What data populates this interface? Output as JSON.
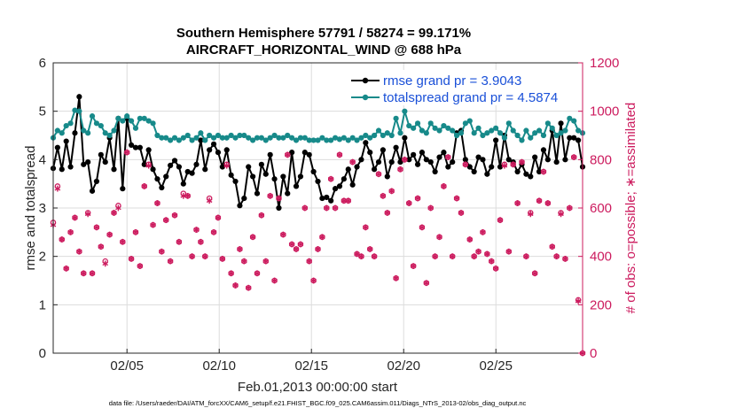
{
  "chart_data": {
    "type": "line",
    "title": "Southern Hemisphere 57791 / 58274 = 99.171%",
    "subtitle": "AIRCRAFT_HORIZONTAL_WIND @ 688 hPa",
    "xlabel": "Feb.01,2013 00:00:00 start",
    "ylabel": "rmse and totalspread",
    "ylabel_right": "# of obs: o=possible; ∗=assimilated",
    "xlim": [
      1,
      29.7
    ],
    "ylim": [
      0,
      6
    ],
    "ylim_right": [
      0,
      1200
    ],
    "x_ticks": [
      5,
      10,
      15,
      20,
      25
    ],
    "x_tick_labels": [
      "02/05",
      "02/10",
      "02/15",
      "02/20",
      "02/25"
    ],
    "y_ticks": [
      "0",
      "1",
      "2",
      "3",
      "4",
      "5",
      "6"
    ],
    "y_right_ticks": [
      "0",
      "200",
      "400",
      "600",
      "800",
      "1000",
      "1200"
    ],
    "grid": true,
    "legend_position": "top-right",
    "footnote": "data file: /Users/raeder/DAI/ATM_forcXX/CAM6_setup/f.e21.FHIST_BGC.f09_025.CAM6assim.011/Diags_NTrS_2013-02/obs_diag_output.nc",
    "series": [
      {
        "name": "rmse grand pr = 3.9043",
        "axis": "left",
        "color": "#000000",
        "values": [
          3.82,
          4.25,
          3.8,
          4.38,
          3.85,
          4.55,
          5.3,
          3.9,
          3.95,
          3.35,
          3.55,
          4.1,
          3.95,
          4.45,
          3.8,
          4.85,
          3.4,
          4.85,
          4.3,
          4.25,
          4.25,
          3.9,
          4.2,
          3.8,
          3.6,
          3.42,
          3.65,
          3.88,
          3.98,
          3.85,
          3.5,
          3.75,
          3.72,
          3.9,
          4.4,
          3.8,
          4.2,
          4.32,
          4.15,
          3.85,
          4.2,
          3.68,
          3.55,
          3.05,
          3.2,
          3.85,
          3.65,
          3.3,
          3.9,
          3.7,
          4.1,
          3.6,
          3.0,
          3.65,
          3.3,
          4.15,
          3.45,
          3.65,
          4.15,
          4.1,
          3.75,
          3.55,
          3.2,
          3.22,
          3.15,
          3.4,
          3.45,
          3.6,
          3.8,
          3.48,
          3.85,
          4.0,
          4.35,
          4.15,
          3.8,
          3.95,
          4.2,
          3.65,
          3.95,
          4.25,
          3.95,
          4.45,
          4.0,
          4.1,
          3.9,
          4.15,
          4.0,
          3.95,
          3.75,
          4.05,
          4.15,
          3.85,
          3.95,
          4.55,
          4.6,
          4.0,
          3.85,
          3.75,
          4.05,
          4.0,
          3.7,
          3.85,
          4.4,
          3.85,
          4.5,
          4.0,
          3.95,
          3.75,
          3.9,
          3.7,
          3.65,
          4.05,
          3.75,
          4.2,
          4.0,
          4.6,
          3.95,
          4.75,
          4.0,
          4.45,
          4.45,
          4.4,
          3.85
        ],
        "marker": "dot"
      },
      {
        "name": "totalspread grand pr = 4.5874",
        "axis": "left",
        "color": "#178a8a",
        "values": [
          4.45,
          4.6,
          4.55,
          4.7,
          4.75,
          5.02,
          5.0,
          4.6,
          4.55,
          4.9,
          4.75,
          4.7,
          4.55,
          4.5,
          4.6,
          4.85,
          4.8,
          4.9,
          4.8,
          4.65,
          4.85,
          4.85,
          4.8,
          4.75,
          4.5,
          4.45,
          4.45,
          4.4,
          4.45,
          4.4,
          4.45,
          4.5,
          4.4,
          4.45,
          4.55,
          4.4,
          4.5,
          4.45,
          4.5,
          4.45,
          4.45,
          4.5,
          4.45,
          4.5,
          4.5,
          4.45,
          4.4,
          4.45,
          4.45,
          4.4,
          4.45,
          4.5,
          4.45,
          4.45,
          4.5,
          4.45,
          4.4,
          4.45,
          4.45,
          4.4,
          4.4,
          4.4,
          4.45,
          4.4,
          4.4,
          4.45,
          4.42,
          4.45,
          4.4,
          4.45,
          4.4,
          4.45,
          4.5,
          4.45,
          4.5,
          4.6,
          4.5,
          4.55,
          4.5,
          4.85,
          4.55,
          5.0,
          4.7,
          4.65,
          4.75,
          4.6,
          4.55,
          4.75,
          4.65,
          4.6,
          4.7,
          4.65,
          4.6,
          4.5,
          4.55,
          4.75,
          4.8,
          4.55,
          4.65,
          4.5,
          4.55,
          4.6,
          4.65,
          4.55,
          4.45,
          4.75,
          4.6,
          4.5,
          4.4,
          4.6,
          4.45,
          4.55,
          4.6,
          4.5,
          4.75,
          4.65,
          4.5,
          4.55,
          4.6,
          4.85,
          4.8,
          4.6,
          4.55
        ],
        "marker": "dot"
      },
      {
        "name": "obs possible",
        "axis": "right",
        "color": "#cc1b5e",
        "marker": "circle",
        "values": [
          540,
          690,
          470,
          350,
          500,
          560,
          420,
          330,
          580,
          330,
          520,
          440,
          380,
          490,
          580,
          610,
          460,
          830,
          390,
          500,
          360,
          690,
          780,
          530,
          620,
          420,
          550,
          380,
          570,
          460,
          660,
          650,
          400,
          510,
          460,
          400,
          640,
          500,
          560,
          390,
          780,
          330,
          280,
          430,
          380,
          270,
          480,
          330,
          570,
          380,
          650,
          300,
          640,
          490,
          820,
          450,
          430,
          450,
          600,
          380,
          300,
          430,
          480,
          600,
          720,
          600,
          820,
          630,
          630,
          790,
          410,
          400,
          520,
          430,
          400,
          740,
          650,
          580,
          670,
          310,
          760,
          800,
          620,
          360,
          640,
          520,
          290,
          600,
          400,
          480,
          690,
          810,
          400,
          640,
          580,
          780,
          470,
          400,
          420,
          500,
          410,
          380,
          350,
          550,
          780,
          420,
          780,
          620,
          790,
          400,
          580,
          330,
          630,
          750,
          620,
          440,
          400,
          580,
          390,
          600,
          810,
          220,
          0
        ]
      },
      {
        "name": "obs assimilated",
        "axis": "right",
        "color": "#cc1b5e",
        "marker": "star",
        "values": [
          530,
          680,
          470,
          350,
          500,
          560,
          420,
          330,
          575,
          330,
          520,
          440,
          370,
          490,
          580,
          600,
          460,
          830,
          390,
          500,
          360,
          690,
          775,
          530,
          620,
          420,
          550,
          380,
          570,
          460,
          650,
          650,
          400,
          510,
          460,
          400,
          630,
          500,
          560,
          390,
          775,
          330,
          280,
          430,
          380,
          270,
          480,
          330,
          570,
          380,
          650,
          300,
          640,
          490,
          820,
          450,
          430,
          450,
          600,
          380,
          300,
          430,
          480,
          600,
          720,
          600,
          820,
          630,
          630,
          790,
          410,
          400,
          520,
          430,
          400,
          740,
          650,
          580,
          670,
          310,
          760,
          800,
          620,
          360,
          640,
          520,
          290,
          600,
          400,
          480,
          690,
          810,
          400,
          640,
          580,
          780,
          470,
          400,
          420,
          500,
          410,
          380,
          350,
          550,
          775,
          420,
          780,
          620,
          790,
          400,
          575,
          330,
          630,
          750,
          620,
          440,
          400,
          575,
          390,
          600,
          810,
          215,
          0
        ]
      }
    ]
  }
}
